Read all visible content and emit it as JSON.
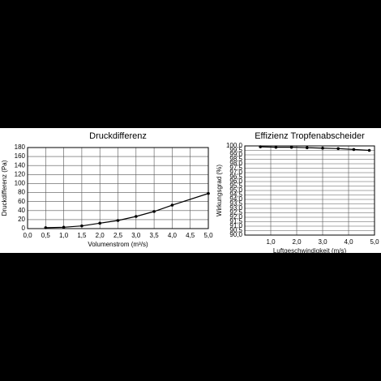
{
  "chart_data": [
    {
      "type": "line",
      "title": "Druckdifferenz",
      "x_label": "Volumenstrom (m³/s)",
      "y_label": "Druckdifferenz (Pa)",
      "x": [
        0.5,
        1.0,
        1.5,
        2.0,
        2.5,
        3.0,
        3.5,
        4.0,
        5.0
      ],
      "values": [
        2,
        3,
        6,
        12,
        18,
        27,
        38,
        52,
        78
      ],
      "color": "#000000",
      "xlim": [
        0,
        5
      ],
      "ylim": [
        0,
        180
      ],
      "xticks": [
        {
          "value": 0,
          "label": "0,0"
        },
        {
          "value": 0.5,
          "label": "0,5"
        },
        {
          "value": 1,
          "label": "1,0"
        },
        {
          "value": 1.5,
          "label": "1,5"
        },
        {
          "value": 2,
          "label": "2,0"
        },
        {
          "value": 2.5,
          "label": "2,5"
        },
        {
          "value": 3,
          "label": "3,0"
        },
        {
          "value": 3.5,
          "label": "3,5"
        },
        {
          "value": 4,
          "label": "4,0"
        },
        {
          "value": 4.5,
          "label": "4,5"
        },
        {
          "value": 5,
          "label": "5,0"
        }
      ],
      "yticks": [
        0,
        20,
        40,
        60,
        80,
        100,
        120,
        140,
        160,
        180
      ],
      "grid": true
    },
    {
      "type": "line",
      "title": "Effizienz Tropfenabscheider",
      "x_label": "Luftgeschwindigkeit (m/s)",
      "y_label": "Wirkungsgrad (%)",
      "x": [
        0.6,
        1.2,
        1.8,
        2.4,
        3.0,
        3.6,
        4.2,
        4.8
      ],
      "values": [
        99.9,
        99.85,
        99.85,
        99.8,
        99.75,
        99.7,
        99.6,
        99.5
      ],
      "color": "#000000",
      "xlim": [
        0,
        5
      ],
      "ylim": [
        90,
        100
      ],
      "xticks": [
        {
          "value": 1,
          "label": "1,0"
        },
        {
          "value": 2,
          "label": "2,0"
        },
        {
          "value": 3,
          "label": "3,0"
        },
        {
          "value": 4,
          "label": "4,0"
        },
        {
          "value": 5,
          "label": "5,0"
        }
      ],
      "yticks": [
        {
          "value": 90,
          "label": "90,0"
        },
        {
          "value": 90.5,
          "label": "90,5"
        },
        {
          "value": 91,
          "label": "91,0"
        },
        {
          "value": 91.5,
          "label": "91,5"
        },
        {
          "value": 92,
          "label": "92,0"
        },
        {
          "value": 92.5,
          "label": "92,5"
        },
        {
          "value": 93,
          "label": "93,0"
        },
        {
          "value": 93.5,
          "label": "93,5"
        },
        {
          "value": 94,
          "label": "94,0"
        },
        {
          "value": 94.5,
          "label": "94,5"
        },
        {
          "value": 95,
          "label": "95,0"
        },
        {
          "value": 95.5,
          "label": "95,5"
        },
        {
          "value": 96,
          "label": "96,0"
        },
        {
          "value": 96.5,
          "label": "96,5"
        },
        {
          "value": 97,
          "label": "97,0"
        },
        {
          "value": 97.5,
          "label": "97,5"
        },
        {
          "value": 98,
          "label": "98,0"
        },
        {
          "value": 98.5,
          "label": "98,5"
        },
        {
          "value": 99,
          "label": "99,0"
        },
        {
          "value": 99.5,
          "label": "99,5"
        },
        {
          "value": 100,
          "label": "100,0"
        }
      ],
      "grid": true
    }
  ]
}
